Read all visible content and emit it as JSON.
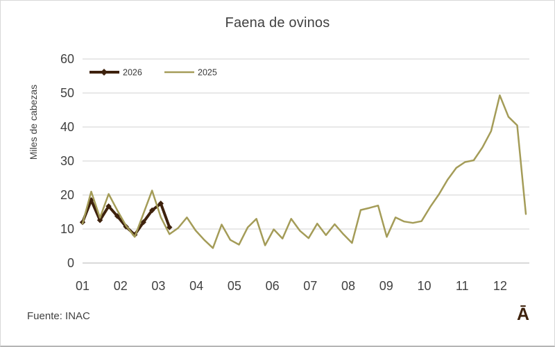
{
  "chart": {
    "title": "Faena de ovinos",
    "y_axis_label": "Miles de cabezas"
  },
  "footer": {
    "source": "Fuente: INAC",
    "logo_glyph": "Ā"
  },
  "colors": {
    "series_2026": "#3e220d",
    "series_2025": "#a49c58",
    "gridline": "#d9d9d9",
    "axis_line": "#c2c2c2",
    "text": "#404040",
    "legend_text": "#383838"
  },
  "chart_data": {
    "type": "line",
    "title": "Faena de ovinos",
    "xlabel": "",
    "ylabel": "Miles de cabezas",
    "x_unit": "weeks, labeled by month",
    "x_tick_labels": [
      "01",
      "02",
      "03",
      "04",
      "05",
      "06",
      "07",
      "08",
      "09",
      "10",
      "11",
      "12"
    ],
    "y_ticks": [
      0,
      10,
      20,
      30,
      40,
      50,
      60
    ],
    "ylim": [
      0,
      60
    ],
    "grid": true,
    "legend_position": "inside-top-left",
    "series": [
      {
        "name": "2026",
        "color": "#3e220d",
        "marker": "diamond",
        "width": 4,
        "start_week": 1,
        "values": [
          12.0,
          18.5,
          12.6,
          16.7,
          13.8,
          10.7,
          8.3,
          12.0,
          15.5,
          17.5,
          10.5
        ]
      },
      {
        "name": "2025",
        "color": "#a49c58",
        "marker": "none",
        "width": 2.5,
        "start_week": 1,
        "values": [
          11.6,
          21.0,
          13.3,
          20.3,
          15.5,
          11.0,
          7.7,
          14.5,
          21.3,
          13.5,
          8.5,
          10.3,
          13.4,
          9.6,
          6.8,
          4.4,
          11.3,
          6.8,
          5.4,
          10.5,
          13.0,
          5.2,
          9.9,
          7.2,
          13.0,
          9.5,
          7.3,
          11.6,
          8.2,
          11.4,
          8.5,
          5.9,
          15.6,
          16.2,
          16.9,
          7.7,
          13.4,
          12.2,
          11.8,
          12.3,
          16.5,
          20.2,
          24.5,
          28.0,
          29.7,
          30.2,
          34.0,
          38.8,
          49.3,
          43.0,
          40.5,
          14.4
        ]
      }
    ]
  }
}
